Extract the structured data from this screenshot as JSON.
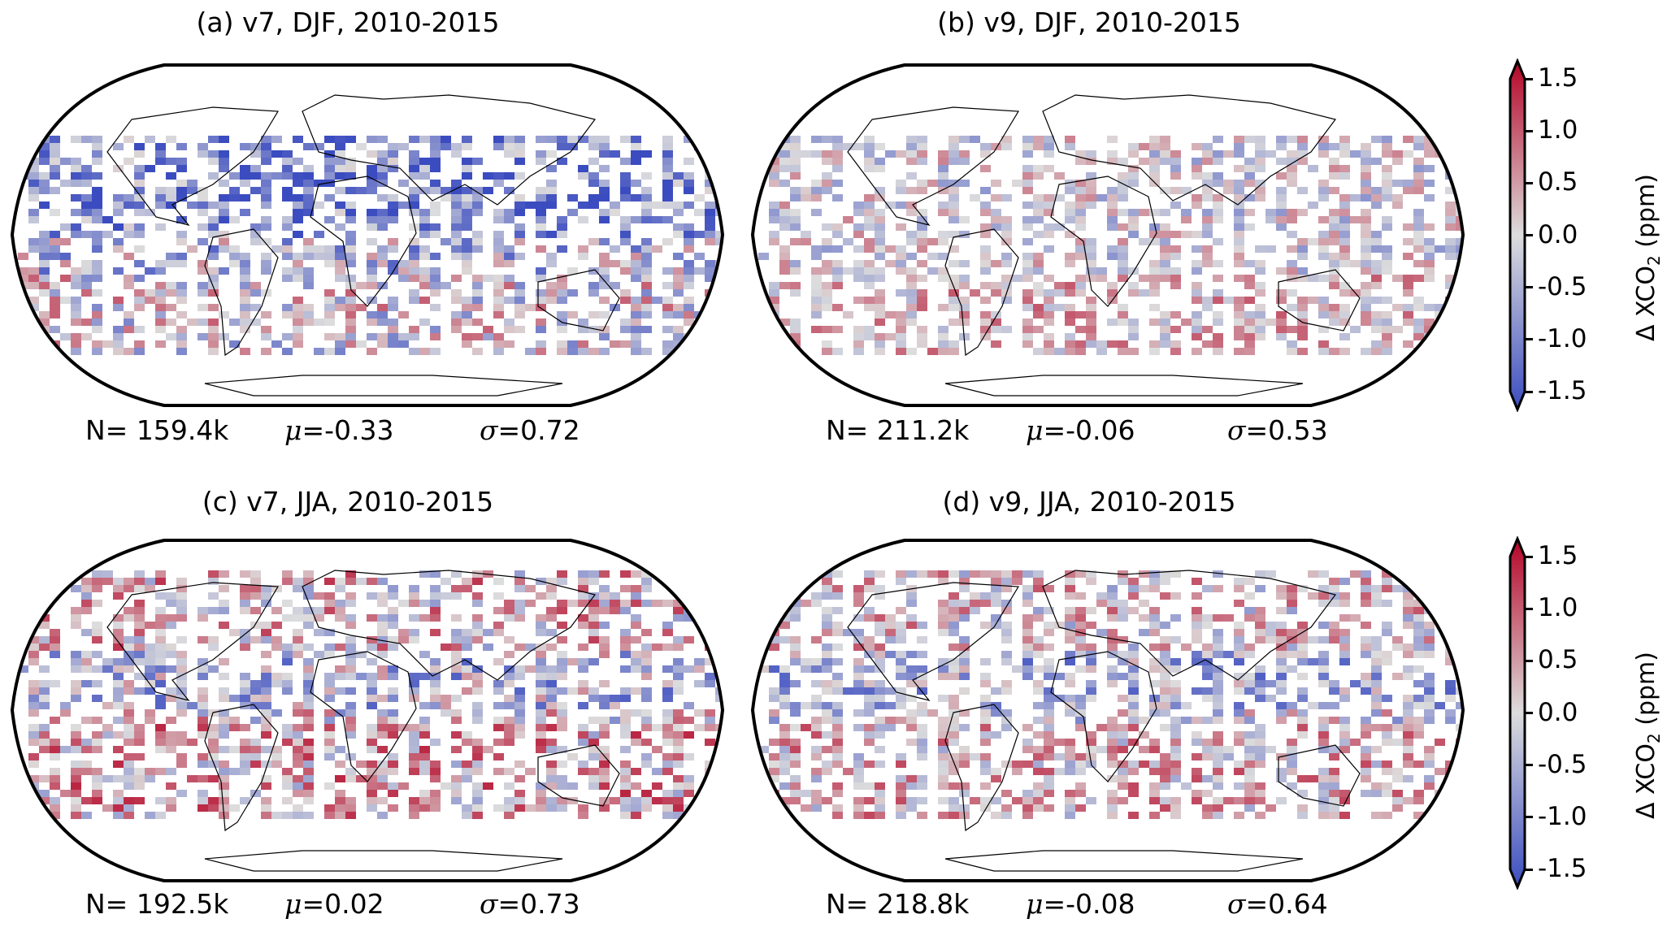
{
  "panels": [
    {
      "title": "(a) v7, DJF, 2010-2015",
      "n": "N= 159.4k",
      "mu_sym": "μ",
      "mu": "=-0.33",
      "sigma_sym": "σ",
      "sigma": "=0.72",
      "mean": -0.33,
      "std": 0.72,
      "season": "DJF"
    },
    {
      "title": "(b) v9, DJF, 2010-2015",
      "n": "N= 211.2k",
      "mu_sym": "μ",
      "mu": "=-0.06",
      "sigma_sym": "σ",
      "sigma": "=0.53",
      "mean": -0.06,
      "std": 0.53,
      "season": "DJF"
    },
    {
      "title": "(c) v7, JJA, 2010-2015",
      "n": "N= 192.5k",
      "mu_sym": "μ",
      "mu": "=0.02",
      "sigma_sym": "σ",
      "sigma": "=0.73",
      "mean": 0.02,
      "std": 0.73,
      "season": "JJA"
    },
    {
      "title": "(d) v9, JJA, 2010-2015",
      "n": "N= 218.8k",
      "mu_sym": "μ",
      "mu": "=-0.08",
      "sigma_sym": "σ",
      "sigma": "=0.64",
      "mean": -0.08,
      "std": 0.64,
      "season": "JJA"
    }
  ],
  "colorbar": {
    "ticks": [
      "1.5",
      "1.0",
      "0.5",
      "0.0",
      "-0.5",
      "-1.0",
      "-1.5"
    ],
    "label_main": "Δ XCO",
    "label_sub": "2",
    "label_unit": " (ppm)",
    "range": [
      -1.5,
      1.5
    ],
    "colormap": {
      "low": "#3b4cc0",
      "mid": "#dddddd",
      "high": "#b40426"
    }
  }
}
